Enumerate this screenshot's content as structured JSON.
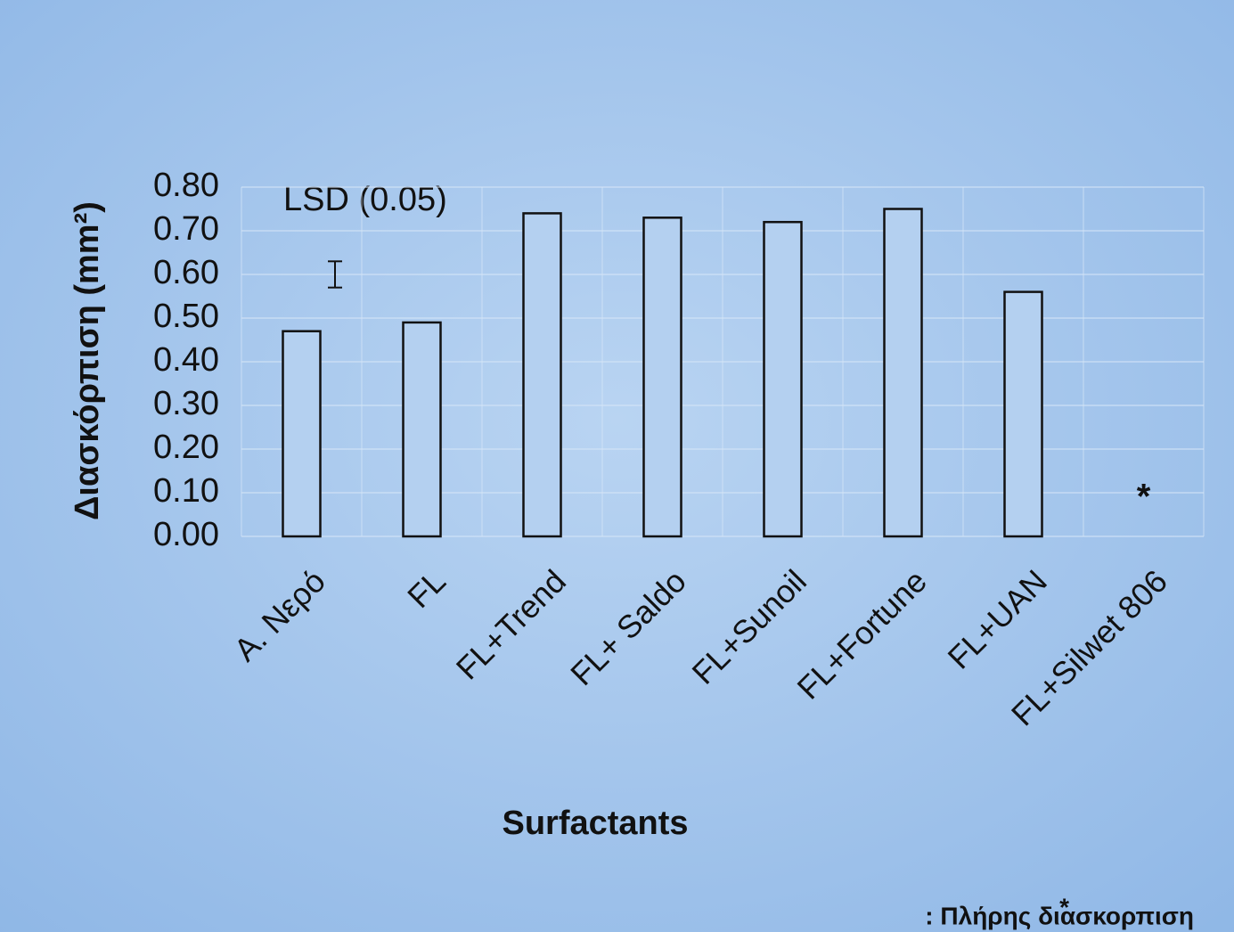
{
  "chart_data": {
    "type": "bar",
    "x_label": "Surfactants",
    "y_label": "Διασκόρπιση (mm²)",
    "categories": [
      "Α. Νερό",
      "FL",
      "FL+Trend",
      "FL+ Saldo",
      "FL+Sunoil",
      "FL+Fortune",
      "FL+UAN",
      "FL+Silwet 806"
    ],
    "values": [
      0.47,
      0.49,
      0.74,
      0.73,
      0.72,
      0.75,
      0.56,
      null
    ],
    "color": "#b4d0f0",
    "ylim": [
      0,
      0.8
    ],
    "yticks": [
      {
        "value": 0,
        "label": "0.00"
      },
      {
        "value": 0.1,
        "label": "0.10"
      },
      {
        "value": 0.2,
        "label": "0.20"
      },
      {
        "value": 0.3,
        "label": "0.30"
      },
      {
        "value": 0.4,
        "label": "0.40"
      },
      {
        "value": 0.5,
        "label": "0.50"
      },
      {
        "value": 0.6,
        "label": "0.60"
      },
      {
        "value": 0.7,
        "label": "0.70"
      },
      {
        "value": 0.8,
        "label": "0.80"
      }
    ],
    "grid": true,
    "lsd_label": "LSD (0.05)",
    "lsd_value": 0.06,
    "marker": "*",
    "footnote": ": Πλήρης διασκορπιση"
  }
}
